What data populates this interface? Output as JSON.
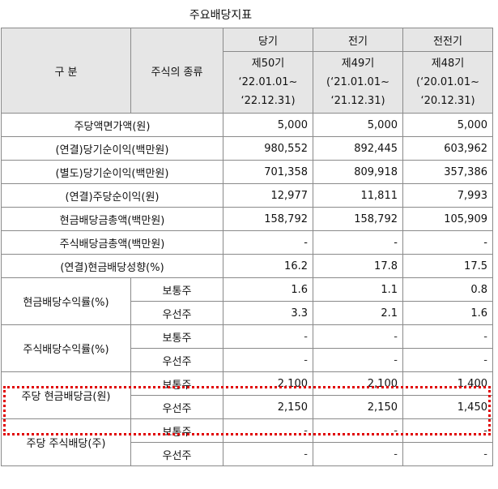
{
  "title": "주요배당지표",
  "header": {
    "division": "구   분",
    "stock_type": "주식의 종류",
    "periods": [
      {
        "name": "당기",
        "term": "제50기",
        "from": "‘22.01.01~",
        "to": "‘22.12.31)"
      },
      {
        "name": "전기",
        "term": "제49기",
        "from": "(‘21.01.01~",
        "to": "‘21.12.31)"
      },
      {
        "name": "전전기",
        "term": "제48기",
        "from": "(‘20.01.01~",
        "to": "‘20.12.31)"
      }
    ]
  },
  "rows": [
    {
      "label": "주당액면가액(원)",
      "values": [
        "5,000",
        "5,000",
        "5,000"
      ]
    },
    {
      "label": "(연결)당기순이익(백만원)",
      "values": [
        "980,552",
        "892,445",
        "603,962"
      ]
    },
    {
      "label": "(별도)당기순이익(백만원)",
      "values": [
        "701,358",
        "809,918",
        "357,386"
      ]
    },
    {
      "label": "(연결)주당순이익(원)",
      "values": [
        "12,977",
        "11,811",
        "7,993"
      ]
    },
    {
      "label": "현금배당금총액(백만원)",
      "values": [
        "158,792",
        "158,792",
        "105,909"
      ]
    },
    {
      "label": "주식배당금총액(백만원)",
      "values": [
        "-",
        "-",
        "-"
      ]
    },
    {
      "label": "(연결)현금배당성향(%)",
      "values": [
        "16.2",
        "17.8",
        "17.5"
      ]
    }
  ],
  "groups": [
    {
      "label": "현금배당수익률(%)",
      "sub": [
        {
          "type": "보통주",
          "values": [
            "1.6",
            "1.1",
            "0.8"
          ]
        },
        {
          "type": "우선주",
          "values": [
            "3.3",
            "2.1",
            "1.6"
          ]
        }
      ]
    },
    {
      "label": "주식배당수익률(%)",
      "sub": [
        {
          "type": "보통주",
          "values": [
            "-",
            "-",
            "-"
          ]
        },
        {
          "type": "우선주",
          "values": [
            "-",
            "-",
            "-"
          ]
        }
      ]
    },
    {
      "label": "주당 현금배당금(원)",
      "highlight_color": "#e00000",
      "sub": [
        {
          "type": "보통주",
          "values": [
            "2,100",
            "2,100",
            "1,400"
          ]
        },
        {
          "type": "우선주",
          "values": [
            "2,150",
            "2,150",
            "1,450"
          ]
        }
      ]
    },
    {
      "label": "주당 주식배당(주)",
      "sub": [
        {
          "type": "보통주",
          "values": [
            "-",
            "-",
            "-"
          ]
        },
        {
          "type": "우선주",
          "values": [
            "-",
            "-",
            "-"
          ]
        }
      ]
    }
  ]
}
